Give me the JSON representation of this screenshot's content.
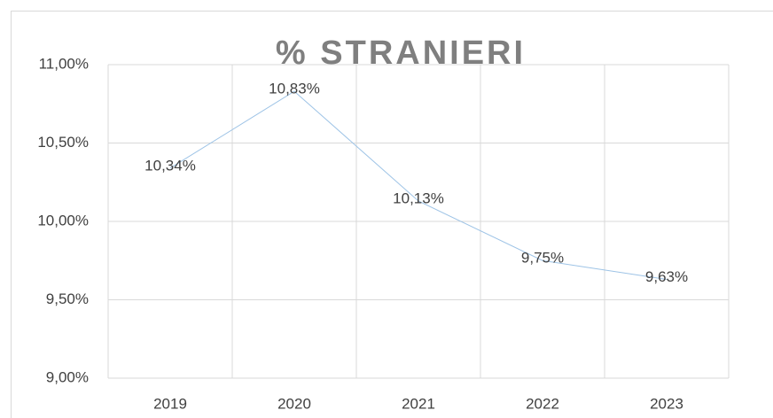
{
  "chart_data": {
    "type": "line",
    "title": "% STRANIERI",
    "categories": [
      "2019",
      "2020",
      "2021",
      "2022",
      "2023"
    ],
    "values": [
      10.34,
      10.83,
      10.13,
      9.75,
      9.63
    ],
    "value_labels": [
      "10,34%",
      "10,83%",
      "10,13%",
      "9,75%",
      "9,63%"
    ],
    "color": "#9dc3e6",
    "ylim": [
      9,
      11
    ],
    "yticks": [
      {
        "value": 9,
        "label": "9,00%"
      },
      {
        "value": 9.5,
        "label": "9,50%"
      },
      {
        "value": 10,
        "label": "10,00%"
      },
      {
        "value": 10.5,
        "label": "10,50%"
      },
      {
        "value": 11,
        "label": "11,00%"
      }
    ],
    "grid": true
  }
}
